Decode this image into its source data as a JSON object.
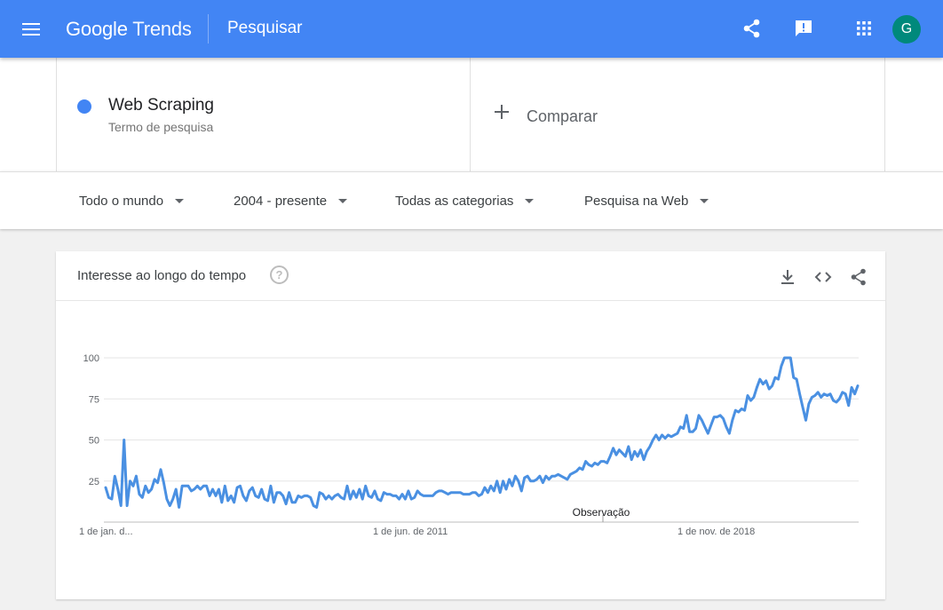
{
  "appbar": {
    "logo_google": "Google",
    "logo_trends": "Trends",
    "title": "Pesquisar",
    "avatar_letter": "G",
    "icons": [
      "menu-icon",
      "share-icon",
      "feedback-icon",
      "apps-icon"
    ]
  },
  "terms": {
    "term": {
      "name": "Web Scraping",
      "subtitle": "Termo de pesquisa",
      "color": "#4285f4"
    },
    "compare_label": "Comparar"
  },
  "filters": {
    "region": "Todo o mundo",
    "period": "2004 - presente",
    "category": "Todas as categorias",
    "search_type": "Pesquisa na Web"
  },
  "card": {
    "title": "Interesse ao longo do tempo",
    "help_symbol": "?",
    "icons": [
      "download-icon",
      "embed-code-icon",
      "share-icon"
    ]
  },
  "chart_data": {
    "type": "line",
    "x_tick_labels": [
      "1 de jan. d...",
      "1 de jun. de 2011",
      "1 de nov. de 2018"
    ],
    "y_ticks": [
      25,
      50,
      75,
      100
    ],
    "ylim": [
      0,
      100
    ],
    "annotation": "Observação",
    "line_color": "#4a90e2",
    "series": [
      {
        "values": [
          21,
          15,
          14,
          28,
          20,
          10,
          50,
          10,
          25,
          22,
          28,
          17,
          15,
          22,
          18,
          20,
          26,
          24,
          32,
          24,
          14,
          10,
          14,
          20,
          9,
          22,
          22,
          22,
          19,
          20,
          22,
          20,
          22,
          22,
          16,
          20,
          16,
          20,
          12,
          22,
          13,
          16,
          12,
          21,
          22,
          16,
          13,
          19,
          21,
          16,
          15,
          20,
          14,
          13,
          22,
          12,
          18,
          18,
          16,
          11,
          18,
          12,
          12,
          16,
          15,
          16,
          16,
          15,
          10,
          9,
          18,
          17,
          14,
          16,
          14,
          16,
          17,
          15,
          14,
          22,
          14,
          19,
          15,
          20,
          14,
          22,
          16,
          15,
          19,
          14,
          13,
          18,
          17,
          17,
          16,
          16,
          14,
          17,
          14,
          19,
          14,
          15,
          19,
          17,
          16,
          16,
          16,
          16,
          18,
          19,
          19,
          18,
          17,
          18,
          18,
          18,
          18,
          17,
          17,
          17,
          18,
          18,
          16,
          17,
          21,
          18,
          22,
          19,
          25,
          18,
          25,
          20,
          26,
          22,
          28,
          25,
          19,
          27,
          28,
          25,
          25,
          26,
          28,
          24,
          28,
          26,
          28,
          28,
          29,
          28,
          27,
          26,
          29,
          30,
          31,
          33,
          32,
          37,
          35,
          34,
          36,
          35,
          37,
          37,
          36,
          40,
          45,
          41,
          44,
          42,
          40,
          46,
          38,
          43,
          40,
          44,
          38,
          43,
          46,
          50,
          53,
          50,
          53,
          51,
          53,
          52,
          53,
          54,
          58,
          57,
          65,
          55,
          55,
          57,
          65,
          62,
          58,
          54,
          59,
          64,
          64,
          65,
          63,
          58,
          54,
          62,
          68,
          67,
          69,
          68,
          77,
          74,
          76,
          82,
          87,
          84,
          86,
          81,
          83,
          88,
          87,
          95,
          100,
          100,
          100,
          88,
          87,
          78,
          70,
          62,
          72,
          76,
          77,
          79,
          76,
          78,
          77,
          78,
          74,
          73,
          75,
          79,
          78,
          71,
          82,
          78,
          83
        ]
      }
    ]
  }
}
